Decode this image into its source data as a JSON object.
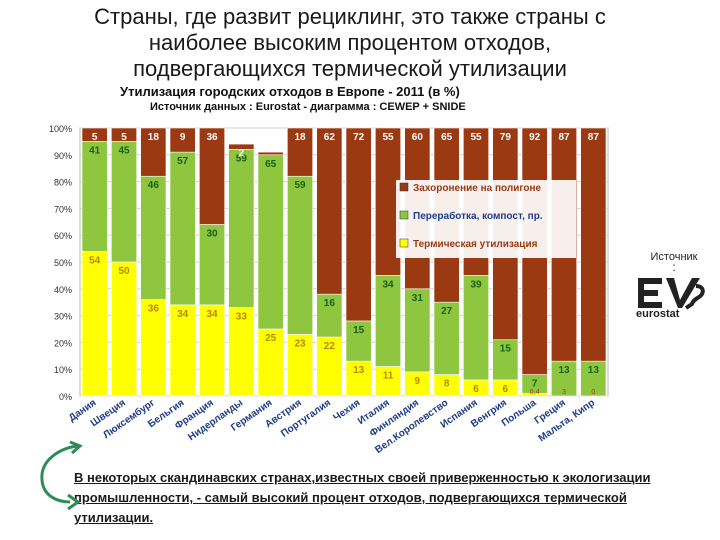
{
  "slide": {
    "title_lines": [
      "Страны, где развит рециклинг, это также страны с",
      "наиболее высоким  процентом  отходов,",
      "подвергающихся термической утилизации"
    ],
    "source_label": "Источник",
    "source_dot": ":",
    "logo_text": "eurostat",
    "bottom_note": "В некоторых скандинавских странах,известных своей приверженностью к экологизации промышленности, - самый высокий процент отходов, подвергающихся термической утилизации.",
    "colors": {
      "arrow": "#2e8b57"
    }
  },
  "chart_data": {
    "type": "stacked-bar",
    "title": "Утилизация городских отходов в Европе - 2011 (в %)",
    "subtitle": "Источник данных : Eurostat    -    диаграмма : CEWEP + SNIDE",
    "categories": [
      "Дания",
      "Швеция",
      "Люксембург",
      "Бельгия",
      "Франция",
      "Нидерланды",
      "Германия",
      "Австрия",
      "Португалия",
      "Чехия",
      "Италия",
      "Финляндия",
      "Вел.Королевство",
      "Испания",
      "Венгрия",
      "Польша",
      "Греция",
      "Мальта, Кипр"
    ],
    "y_ticks": [
      "0%",
      "10%",
      "20%",
      "30%",
      "40%",
      "50%",
      "60%",
      "70%",
      "80%",
      "90%",
      "100%"
    ],
    "ylim": [
      0,
      100
    ],
    "series": [
      {
        "name": "Термическая утилизация",
        "color": "#ffff00",
        "values": [
          54,
          50,
          36,
          34,
          34,
          33,
          25,
          23,
          22,
          13,
          11,
          9,
          8,
          6,
          6,
          1,
          0,
          0
        ],
        "labels": [
          "54",
          "50",
          "36",
          "34",
          "34",
          "33",
          "25",
          "23",
          "22",
          "13",
          "11",
          "9",
          "8",
          "6",
          "6",
          "",
          "",
          ""
        ]
      },
      {
        "name": "Переработка, компост, пр.",
        "color": "#8ec63f",
        "values": [
          41,
          45,
          46,
          57,
          30,
          59,
          65,
          59,
          16,
          15,
          34,
          31,
          27,
          39,
          15,
          7,
          13,
          13
        ],
        "labels": [
          "41",
          "45",
          "46",
          "57",
          "30",
          "59",
          "65",
          "59",
          "16",
          "15",
          "34",
          "31",
          "27",
          "39",
          "15",
          "7",
          "13",
          "13"
        ]
      },
      {
        "name": "Захоронение на полигоне",
        "color": "#9b3a12",
        "values": [
          5,
          5,
          18,
          9,
          36,
          2,
          1,
          18,
          62,
          72,
          55,
          60,
          65,
          55,
          79,
          92,
          87,
          87
        ],
        "labels": [
          "5",
          "5",
          "18",
          "9",
          "36",
          "2",
          "",
          "18",
          "62",
          "72",
          "55",
          "60",
          "65",
          "55",
          "79",
          "92",
          "87",
          "87"
        ]
      }
    ],
    "legend": [
      "Захоронение на полигоне",
      "Переработка, компост, пр.",
      "Термическая утилизация"
    ],
    "legend_position": "center-right",
    "annotations": [
      "0,4",
      "3",
      "0"
    ]
  }
}
